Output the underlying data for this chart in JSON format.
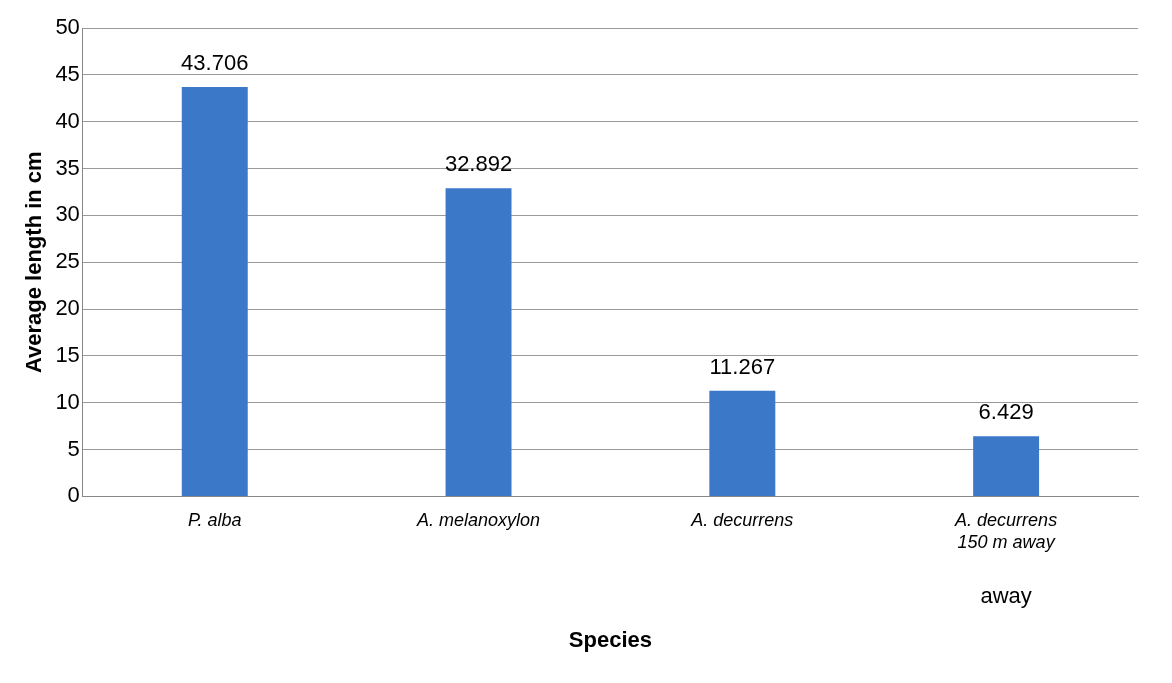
{
  "chart_data": {
    "type": "bar",
    "xlabel": "Species",
    "ylabel": "Average length in cm",
    "categories": [
      "P. alba",
      "A. melanoxylon",
      "A. decurrens",
      "A. decurrens 150 m away"
    ],
    "values": [
      43.706,
      32.892,
      11.267,
      6.429
    ],
    "color": "#3c78c8",
    "ylim": [
      0,
      50
    ],
    "yticks": [
      0,
      5,
      10,
      15,
      20,
      25,
      30,
      35,
      40,
      45,
      50
    ],
    "grid": "y",
    "legend": false,
    "data_labels": true,
    "annotations": [
      "away"
    ]
  }
}
